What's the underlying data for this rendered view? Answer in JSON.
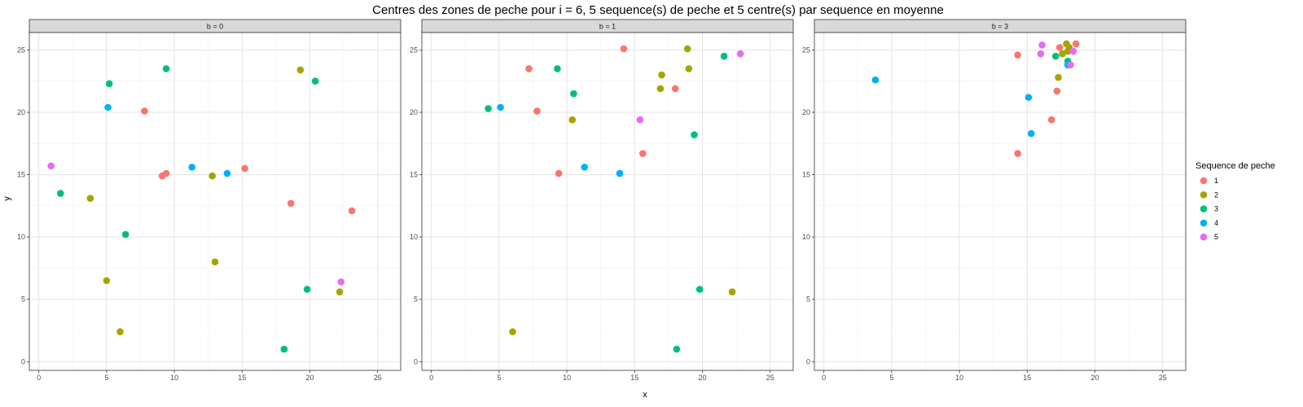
{
  "chart_data": {
    "type": "scatter",
    "title": "Centres des zones de peche pour i = 6, 5 sequence(s) de peche et 5 centre(s) par sequence en moyenne",
    "xlabel": "x",
    "ylabel": "y",
    "xlim": [
      -0.7,
      26.7
    ],
    "ylim": [
      -0.7,
      26.4
    ],
    "xticks": [
      0,
      5,
      10,
      15,
      20,
      25
    ],
    "yticks": [
      0,
      5,
      10,
      15,
      20,
      25
    ],
    "grid": true,
    "legend": {
      "title": "Sequence de peche",
      "placement": "right",
      "entries": [
        {
          "label": "1",
          "color": "#F8766D"
        },
        {
          "label": "2",
          "color": "#A3A500"
        },
        {
          "label": "3",
          "color": "#00BF7D"
        },
        {
          "label": "4",
          "color": "#00B0F6"
        },
        {
          "label": "5",
          "color": "#E76BF3"
        }
      ]
    },
    "panels": [
      {
        "label": "b = 0",
        "points": [
          {
            "x": 7.8,
            "y": 20.1,
            "seq": "1"
          },
          {
            "x": 9.1,
            "y": 14.9,
            "seq": "1"
          },
          {
            "x": 9.4,
            "y": 15.1,
            "seq": "1"
          },
          {
            "x": 15.2,
            "y": 15.5,
            "seq": "1"
          },
          {
            "x": 18.6,
            "y": 12.7,
            "seq": "1"
          },
          {
            "x": 23.1,
            "y": 12.1,
            "seq": "1"
          },
          {
            "x": 19.3,
            "y": 23.4,
            "seq": "2"
          },
          {
            "x": 3.8,
            "y": 13.1,
            "seq": "2"
          },
          {
            "x": 12.8,
            "y": 14.9,
            "seq": "2"
          },
          {
            "x": 13.0,
            "y": 8.0,
            "seq": "2"
          },
          {
            "x": 5.0,
            "y": 6.5,
            "seq": "2"
          },
          {
            "x": 6.0,
            "y": 2.4,
            "seq": "2"
          },
          {
            "x": 22.2,
            "y": 5.6,
            "seq": "2"
          },
          {
            "x": 5.2,
            "y": 22.3,
            "seq": "3"
          },
          {
            "x": 9.4,
            "y": 23.5,
            "seq": "3"
          },
          {
            "x": 20.4,
            "y": 22.5,
            "seq": "3"
          },
          {
            "x": 1.6,
            "y": 13.5,
            "seq": "3"
          },
          {
            "x": 6.4,
            "y": 10.2,
            "seq": "3"
          },
          {
            "x": 19.8,
            "y": 5.8,
            "seq": "3"
          },
          {
            "x": 18.1,
            "y": 1.0,
            "seq": "3"
          },
          {
            "x": 5.1,
            "y": 20.4,
            "seq": "4"
          },
          {
            "x": 11.3,
            "y": 15.6,
            "seq": "4"
          },
          {
            "x": 13.9,
            "y": 15.1,
            "seq": "4"
          },
          {
            "x": 0.9,
            "y": 15.7,
            "seq": "5"
          },
          {
            "x": 22.3,
            "y": 6.4,
            "seq": "5"
          }
        ]
      },
      {
        "label": "b = 1",
        "points": [
          {
            "x": 7.2,
            "y": 23.5,
            "seq": "1"
          },
          {
            "x": 7.8,
            "y": 20.1,
            "seq": "1"
          },
          {
            "x": 9.4,
            "y": 15.1,
            "seq": "1"
          },
          {
            "x": 14.2,
            "y": 25.1,
            "seq": "1"
          },
          {
            "x": 15.6,
            "y": 16.7,
            "seq": "1"
          },
          {
            "x": 18.0,
            "y": 21.9,
            "seq": "1"
          },
          {
            "x": 10.4,
            "y": 19.4,
            "seq": "2"
          },
          {
            "x": 16.9,
            "y": 21.9,
            "seq": "2"
          },
          {
            "x": 17.0,
            "y": 23.0,
            "seq": "2"
          },
          {
            "x": 18.9,
            "y": 25.1,
            "seq": "2"
          },
          {
            "x": 19.0,
            "y": 23.5,
            "seq": "2"
          },
          {
            "x": 6.0,
            "y": 2.4,
            "seq": "2"
          },
          {
            "x": 22.2,
            "y": 5.6,
            "seq": "2"
          },
          {
            "x": 4.2,
            "y": 20.3,
            "seq": "3"
          },
          {
            "x": 9.3,
            "y": 23.5,
            "seq": "3"
          },
          {
            "x": 10.5,
            "y": 21.5,
            "seq": "3"
          },
          {
            "x": 21.6,
            "y": 24.5,
            "seq": "3"
          },
          {
            "x": 19.4,
            "y": 18.2,
            "seq": "3"
          },
          {
            "x": 19.8,
            "y": 5.8,
            "seq": "3"
          },
          {
            "x": 18.1,
            "y": 1.0,
            "seq": "3"
          },
          {
            "x": 5.1,
            "y": 20.4,
            "seq": "4"
          },
          {
            "x": 11.3,
            "y": 15.6,
            "seq": "4"
          },
          {
            "x": 13.9,
            "y": 15.1,
            "seq": "4"
          },
          {
            "x": 15.4,
            "y": 19.4,
            "seq": "5"
          },
          {
            "x": 22.8,
            "y": 24.7,
            "seq": "5"
          }
        ]
      },
      {
        "label": "b = 3",
        "points": [
          {
            "x": 14.3,
            "y": 24.6,
            "seq": "1"
          },
          {
            "x": 14.3,
            "y": 16.7,
            "seq": "1"
          },
          {
            "x": 16.8,
            "y": 19.4,
            "seq": "1"
          },
          {
            "x": 17.2,
            "y": 21.7,
            "seq": "1"
          },
          {
            "x": 17.4,
            "y": 25.2,
            "seq": "1"
          },
          {
            "x": 18.6,
            "y": 25.5,
            "seq": "1"
          },
          {
            "x": 17.3,
            "y": 22.8,
            "seq": "2"
          },
          {
            "x": 17.6,
            "y": 24.7,
            "seq": "2"
          },
          {
            "x": 17.9,
            "y": 25.5,
            "seq": "2"
          },
          {
            "x": 18.0,
            "y": 24.9,
            "seq": "2"
          },
          {
            "x": 18.1,
            "y": 25.2,
            "seq": "2"
          },
          {
            "x": 17.1,
            "y": 24.5,
            "seq": "3"
          },
          {
            "x": 18.0,
            "y": 24.1,
            "seq": "3"
          },
          {
            "x": 3.8,
            "y": 22.6,
            "seq": "4"
          },
          {
            "x": 15.1,
            "y": 21.2,
            "seq": "4"
          },
          {
            "x": 15.3,
            "y": 18.3,
            "seq": "4"
          },
          {
            "x": 18.0,
            "y": 23.8,
            "seq": "4"
          },
          {
            "x": 16.0,
            "y": 24.7,
            "seq": "5"
          },
          {
            "x": 16.1,
            "y": 25.4,
            "seq": "5"
          },
          {
            "x": 18.2,
            "y": 23.8,
            "seq": "5"
          },
          {
            "x": 18.4,
            "y": 24.9,
            "seq": "5"
          }
        ]
      }
    ]
  }
}
